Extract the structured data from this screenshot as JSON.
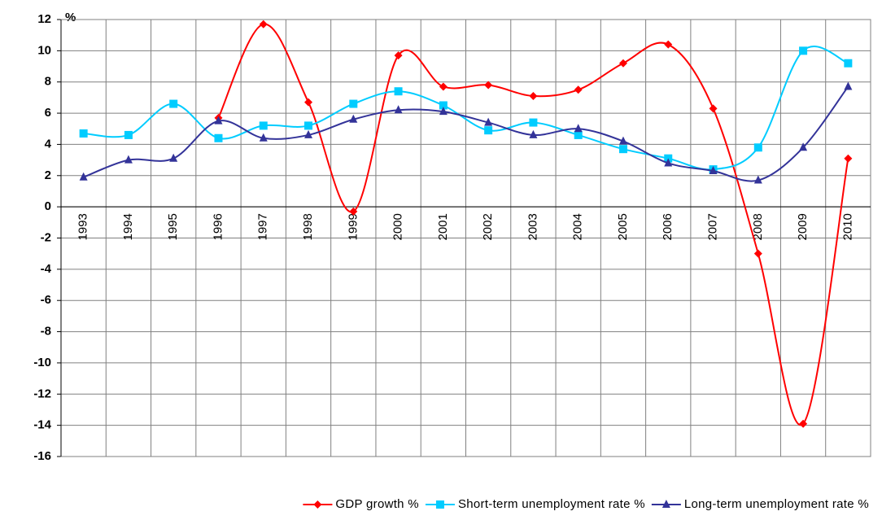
{
  "chart_data": {
    "type": "line",
    "y_label": "%",
    "categories": [
      "1993",
      "1994",
      "1995",
      "1996",
      "1997",
      "1998",
      "1999",
      "2000",
      "2001",
      "2002",
      "2003",
      "2004",
      "2005",
      "2006",
      "2007",
      "2008",
      "2009",
      "2010"
    ],
    "series": [
      {
        "name": "GDP growth %",
        "color": "#ff0000",
        "marker": "diamond",
        "values": [
          null,
          null,
          null,
          5.7,
          11.7,
          6.7,
          -0.3,
          9.7,
          7.7,
          7.8,
          7.1,
          7.5,
          9.2,
          10.4,
          6.3,
          -3.0,
          -13.9,
          3.1
        ]
      },
      {
        "name": "Short-term unemployment rate %",
        "color": "#00ccff",
        "marker": "square",
        "values": [
          4.7,
          4.6,
          6.6,
          4.4,
          5.2,
          5.2,
          6.6,
          7.4,
          6.5,
          4.9,
          5.4,
          4.6,
          3.7,
          3.1,
          2.4,
          3.8,
          10.0,
          9.2
        ]
      },
      {
        "name": "Long-term unemployment rate %",
        "color": "#333399",
        "marker": "triangle",
        "values": [
          1.9,
          3.0,
          3.1,
          5.5,
          4.4,
          4.6,
          5.6,
          6.2,
          6.1,
          5.4,
          4.6,
          5.0,
          4.2,
          2.8,
          2.3,
          1.7,
          3.8,
          7.7
        ]
      }
    ],
    "ylim": [
      -16,
      12
    ],
    "yticks": [
      12,
      10,
      8,
      6,
      4,
      2,
      0,
      -2,
      -4,
      -6,
      -8,
      -10,
      -12,
      -14,
      -16
    ],
    "grid": true,
    "smooth": true,
    "legend": "bottom"
  }
}
